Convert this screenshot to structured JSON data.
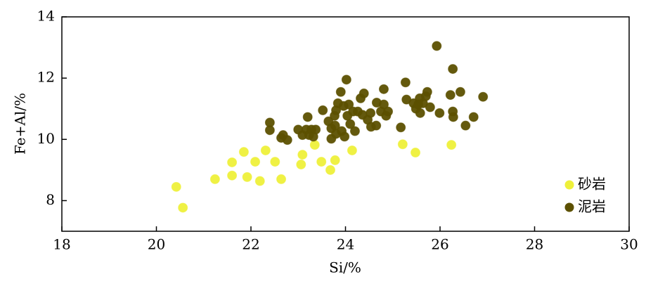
{
  "chart_data": {
    "type": "scatter",
    "x_label": "Si/%",
    "y_label": "Fe+Al/%",
    "xlim": [
      18,
      30
    ],
    "xticks": [
      18,
      20,
      22,
      24,
      26,
      28,
      30
    ],
    "ylim": [
      7,
      14
    ],
    "yticks": [
      8,
      10,
      12,
      14
    ],
    "legend": "lower right",
    "series": [
      {
        "name": "砂岩",
        "color": "#eef03a",
        "x": [
          20.42,
          20.56,
          21.24,
          21.6,
          21.6,
          21.85,
          21.92,
          22.09,
          22.19,
          22.31,
          22.51,
          22.64,
          23.09,
          23.06,
          23.35,
          23.49,
          23.68,
          23.78,
          24.14,
          25.21,
          25.48,
          26.24
        ],
        "values": [
          8.45,
          7.77,
          8.7,
          9.25,
          8.82,
          9.59,
          8.77,
          9.27,
          8.64,
          9.64,
          9.27,
          8.7,
          9.5,
          9.18,
          9.82,
          9.27,
          9.0,
          9.32,
          9.64,
          9.84,
          9.57,
          9.82
        ]
      },
      {
        "name": "泥岩",
        "color": "#5c5000",
        "x": [
          22.4,
          22.4,
          22.64,
          22.68,
          22.77,
          23.0,
          23.09,
          23.17,
          23.2,
          23.23,
          23.28,
          23.32,
          23.37,
          23.52,
          23.64,
          23.7,
          23.7,
          23.77,
          23.78,
          23.8,
          23.8,
          23.84,
          23.9,
          23.92,
          23.96,
          23.98,
          24.02,
          24.04,
          24.07,
          24.1,
          24.16,
          24.2,
          24.26,
          24.32,
          24.36,
          24.39,
          24.47,
          24.53,
          24.54,
          24.65,
          24.66,
          24.75,
          24.81,
          24.81,
          24.86,
          24.9,
          25.17,
          25.27,
          25.29,
          25.44,
          25.49,
          25.54,
          25.57,
          25.58,
          25.64,
          25.7,
          25.73,
          25.79,
          25.93,
          25.99,
          26.22,
          26.27,
          26.27,
          26.28,
          26.43,
          26.54,
          26.71,
          26.91
        ],
        "values": [
          10.55,
          10.3,
          10.05,
          10.14,
          9.98,
          10.32,
          10.14,
          10.32,
          10.73,
          10.14,
          10.32,
          10.09,
          10.32,
          10.95,
          10.59,
          10.36,
          10.02,
          10.77,
          10.45,
          10.18,
          10.95,
          11.18,
          11.55,
          10.27,
          11.09,
          10.09,
          11.95,
          10.77,
          11.14,
          10.5,
          10.91,
          10.27,
          10.91,
          11.34,
          10.8,
          11.5,
          10.64,
          10.86,
          10.41,
          10.45,
          11.2,
          10.91,
          11.64,
          11.14,
          10.77,
          10.91,
          10.39,
          11.86,
          11.3,
          11.18,
          11.0,
          11.14,
          11.34,
          10.86,
          11.18,
          11.41,
          11.55,
          11.05,
          13.05,
          10.86,
          11.45,
          12.3,
          10.91,
          10.73,
          11.55,
          10.45,
          10.73,
          11.39
        ]
      }
    ]
  }
}
